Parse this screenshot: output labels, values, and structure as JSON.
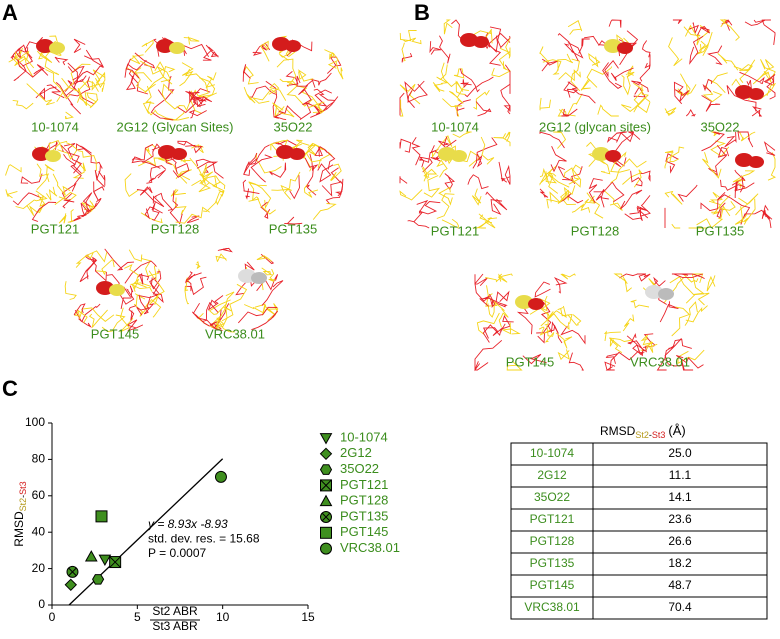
{
  "panel_a": {
    "label": "A",
    "structures": [
      "10-1074",
      "2G12 (Glycan Sites)",
      "35O22",
      "PGT121",
      "PGT128",
      "PGT135",
      "PGT145",
      "VRC38.01"
    ]
  },
  "panel_b": {
    "label": "B",
    "structures": [
      "10-1074",
      "2G12 (glycan sites)",
      "35O22",
      "PGT121",
      "PGT128",
      "PGT135",
      "PGT145",
      "VRC38.01"
    ]
  },
  "panel_c": {
    "label": "C",
    "chart_data": {
      "type": "scatter",
      "y_axis_label": {
        "main": "RMSD",
        "sub_a": "St2",
        "sub_sep": "-",
        "sub_b": "St3"
      },
      "x_axis_label": {
        "numerator": "St2 ABR",
        "denominator": "St3 ABR"
      },
      "xlim": [
        0,
        15
      ],
      "ylim": [
        0,
        100
      ],
      "xticks": [
        0,
        5,
        10,
        15
      ],
      "yticks": [
        0,
        20,
        40,
        60,
        80,
        100
      ],
      "marker_color": "#3f8f1f",
      "fit": {
        "slope": 8.93,
        "intercept": -8.93,
        "x_range": [
          1,
          10
        ]
      },
      "annotations": [
        "y = 8.93x -8.93",
        "std. dev. res. = 15.68",
        "P = 0.0007"
      ],
      "series": [
        {
          "name": "10-1074",
          "marker": "triangle-down",
          "x": [
            3.1
          ],
          "values": [
            25.0
          ]
        },
        {
          "name": "2G12",
          "marker": "diamond",
          "x": [
            1.1
          ],
          "values": [
            11.1
          ]
        },
        {
          "name": "35O22",
          "marker": "hexagon",
          "x": [
            2.7
          ],
          "values": [
            14.1
          ]
        },
        {
          "name": "PGT121",
          "marker": "square-x",
          "x": [
            3.7
          ],
          "values": [
            23.6
          ]
        },
        {
          "name": "PGT128",
          "marker": "triangle-up",
          "x": [
            2.3
          ],
          "values": [
            26.6
          ]
        },
        {
          "name": "PGT135",
          "marker": "circle-x",
          "x": [
            1.2
          ],
          "values": [
            18.2
          ]
        },
        {
          "name": "PGT145",
          "marker": "square",
          "x": [
            2.9
          ],
          "values": [
            48.7
          ]
        },
        {
          "name": "VRC38.01",
          "marker": "circle",
          "x": [
            9.9
          ],
          "values": [
            70.4
          ]
        }
      ]
    },
    "table": {
      "header": {
        "main": "RMSD",
        "sub_a": "St2",
        "sub_sep": "-",
        "sub_b": "St3",
        "unit": "(Å)"
      },
      "rows": [
        [
          "10-1074",
          "25.0"
        ],
        [
          "2G12",
          "11.1"
        ],
        [
          "35O22",
          "14.1"
        ],
        [
          "PGT121",
          "23.6"
        ],
        [
          "PGT128",
          "26.6"
        ],
        [
          "PGT135",
          "18.2"
        ],
        [
          "PGT145",
          "48.7"
        ],
        [
          "VRC38.01",
          "70.4"
        ]
      ]
    }
  }
}
